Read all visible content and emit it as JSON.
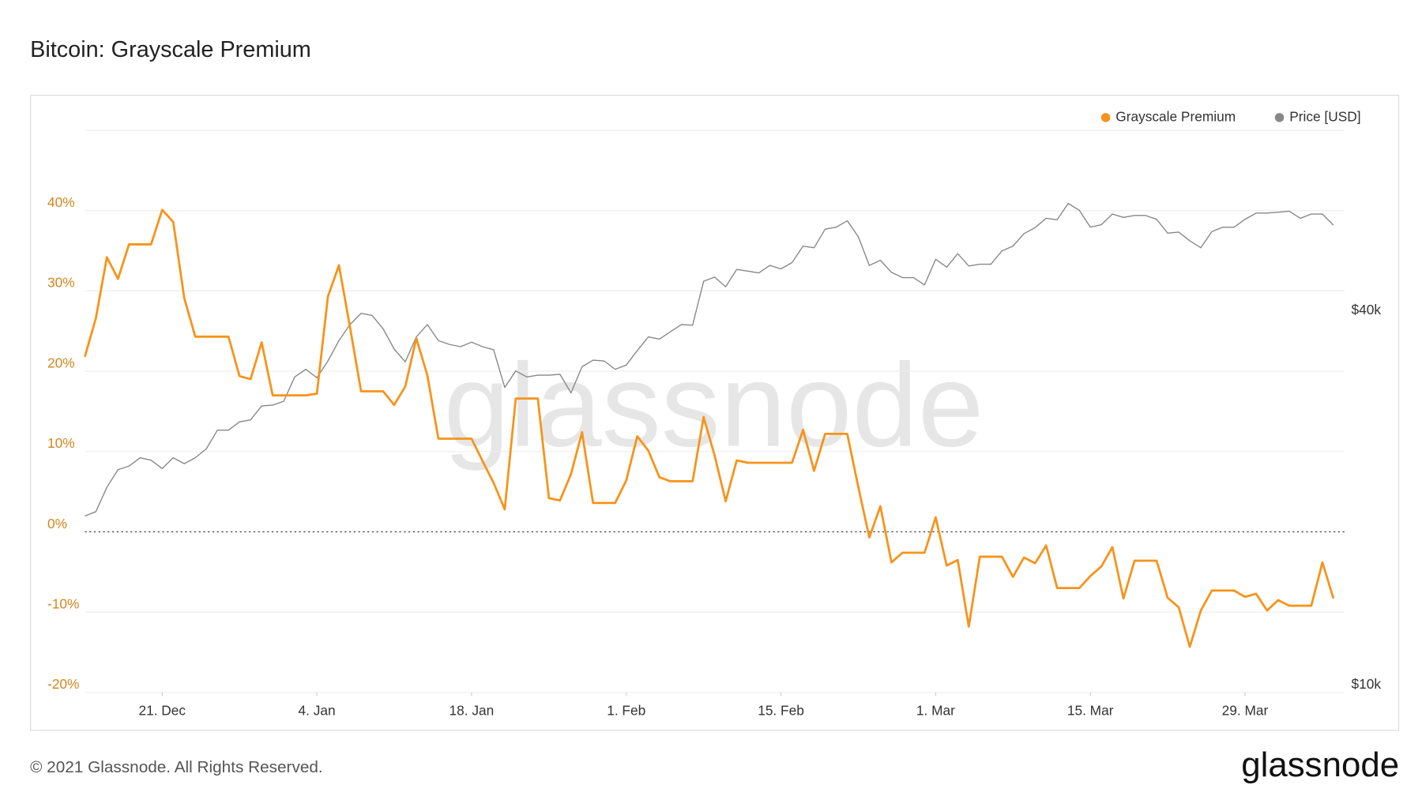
{
  "chart_data": {
    "type": "line",
    "title": "Bitcoin: Grayscale Premium",
    "watermark": "glassnode",
    "footer": "© 2021 Glassnode. All Rights Reserved.",
    "brand": "glassnode",
    "legend": "top-right",
    "grid": true,
    "xlim": [
      0,
      114
    ],
    "xticks": [
      {
        "value": 7,
        "label": "21. Dec"
      },
      {
        "value": 21,
        "label": "4. Jan"
      },
      {
        "value": 35,
        "label": "18. Jan"
      },
      {
        "value": 49,
        "label": "1. Feb"
      },
      {
        "value": 63,
        "label": "15. Feb"
      },
      {
        "value": 77,
        "label": "1. Mar"
      },
      {
        "value": 91,
        "label": "15. Mar"
      },
      {
        "value": 105,
        "label": "29. Mar"
      }
    ],
    "ylim": [
      -20,
      50
    ],
    "yticks": [
      {
        "value": -20,
        "label": "-20%"
      },
      {
        "value": -10,
        "label": "-10%"
      },
      {
        "value": 0,
        "label": "0%"
      },
      {
        "value": 10,
        "label": "10%"
      },
      {
        "value": 20,
        "label": "20%"
      },
      {
        "value": 30,
        "label": "30%"
      },
      {
        "value": 40,
        "label": "40%"
      }
    ],
    "y2lim": [
      9730,
      78000
    ],
    "y2log": true,
    "y2ticks": [
      {
        "value": 10000,
        "label": "$10k"
      },
      {
        "value": 40000,
        "label": "$40k"
      }
    ],
    "series": [
      {
        "name": "Grayscale Premium",
        "color": "#f7931a",
        "values": [
          21.8,
          26.6,
          34.2,
          31.5,
          35.8,
          35.8,
          35.8,
          40.1,
          38.6,
          29.1,
          24.3,
          24.3,
          24.3,
          24.3,
          19.4,
          19.0,
          23.6,
          17.0,
          17.0,
          17.0,
          17.0,
          17.2,
          29.3,
          33.2,
          25.5,
          17.5,
          17.5,
          17.5,
          15.8,
          18.1,
          24.1,
          19.5,
          11.6,
          11.6,
          11.6,
          11.6,
          8.8,
          6.1,
          2.8,
          16.6,
          16.6,
          16.6,
          4.2,
          3.9,
          7.2,
          12.4,
          3.6,
          3.6,
          3.6,
          6.4,
          11.9,
          10.1,
          6.8,
          6.3,
          6.3,
          6.3,
          14.3,
          9.5,
          3.8,
          8.9,
          8.6,
          8.6,
          8.6,
          8.6,
          8.6,
          12.7,
          7.6,
          12.2,
          12.2,
          12.2,
          5.6,
          -0.7,
          3.2,
          -3.8,
          -2.6,
          -2.6,
          -2.6,
          1.8,
          -4.2,
          -3.5,
          -11.8,
          -3.1,
          -3.1,
          -3.1,
          -5.6,
          -3.2,
          -3.9,
          -1.7,
          -7.0,
          -7.0,
          -7.0,
          -5.5,
          -4.3,
          -1.9,
          -8.3,
          -3.6,
          -3.6,
          -3.6,
          -8.2,
          -9.4,
          -14.3,
          -9.8,
          -7.3,
          -7.3,
          -7.3,
          -8.1,
          -7.7,
          -9.8,
          -8.5,
          -9.2,
          -9.2,
          -9.2,
          -3.8,
          -8.3
        ]
      },
      {
        "name": "Price [USD]",
        "color": "#888888",
        "axis": "y2",
        "values": [
          18700,
          19000,
          20800,
          22200,
          22500,
          23200,
          23000,
          22300,
          23200,
          22700,
          23200,
          24000,
          25700,
          25700,
          26500,
          26700,
          28100,
          28200,
          28600,
          31300,
          32200,
          31200,
          33200,
          35800,
          38000,
          39600,
          39300,
          37400,
          34700,
          33100,
          36300,
          38000,
          35800,
          35300,
          35000,
          35600,
          35000,
          34600,
          30100,
          32000,
          31300,
          31500,
          31500,
          31600,
          29500,
          32500,
          33300,
          33200,
          32200,
          32700,
          34500,
          36300,
          36000,
          37000,
          38000,
          37900,
          44600,
          45300,
          43700,
          46600,
          46300,
          46000,
          47300,
          46700,
          47800,
          50800,
          50500,
          54100,
          54500,
          55800,
          52600,
          47300,
          48200,
          46100,
          45200,
          45200,
          44000,
          48400,
          47000,
          49400,
          47200,
          47500,
          47500,
          49900,
          50800,
          53200,
          54400,
          56300,
          56000,
          59500,
          58000,
          54500,
          55000,
          57200,
          56500,
          56900,
          56900,
          56100,
          53300,
          53500,
          51800,
          50500,
          53600,
          54500,
          54500,
          56100,
          57400,
          57400,
          57600,
          57800,
          56300,
          57200,
          57200,
          54900
        ]
      }
    ]
  }
}
